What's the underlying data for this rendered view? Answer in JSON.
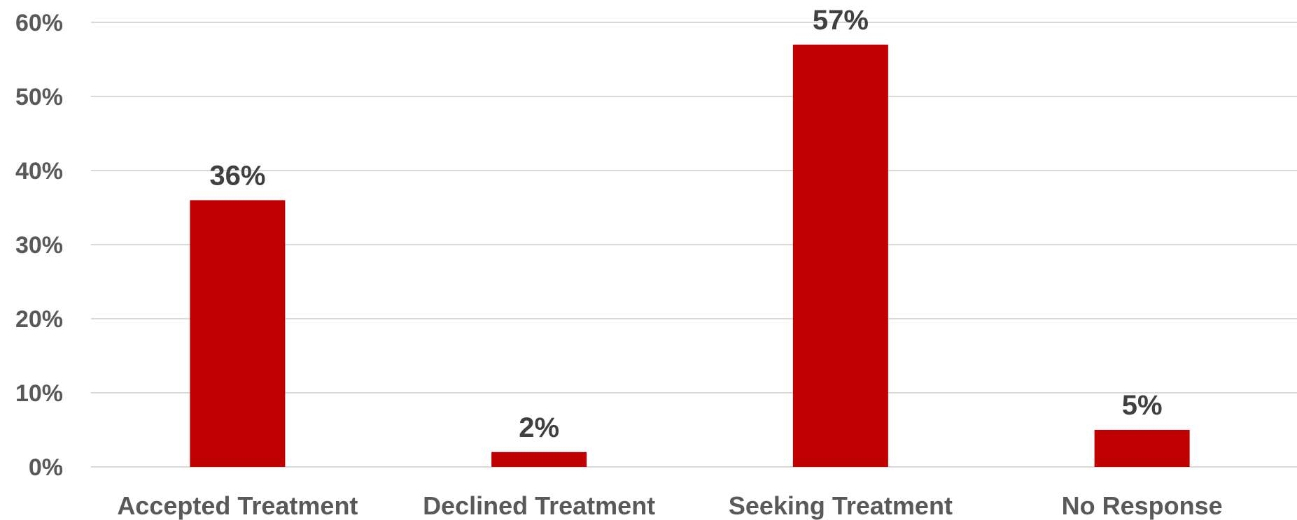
{
  "chart_data": {
    "type": "bar",
    "categories": [
      "Accepted Treatment",
      "Declined Treatment",
      "Seeking Treatment",
      "No Response"
    ],
    "values": [
      36,
      2,
      57,
      5
    ],
    "data_labels": [
      "36%",
      "2%",
      "57%",
      "5%"
    ],
    "title": "",
    "xlabel": "",
    "ylabel": "",
    "ylim": [
      0,
      60
    ],
    "yticks": [
      0,
      10,
      20,
      30,
      40,
      50,
      60
    ],
    "ytick_labels": [
      "0%",
      "10%",
      "20%",
      "30%",
      "40%",
      "50%",
      "60%"
    ],
    "grid": true,
    "legend": "none",
    "bar_color": "#c00000"
  }
}
